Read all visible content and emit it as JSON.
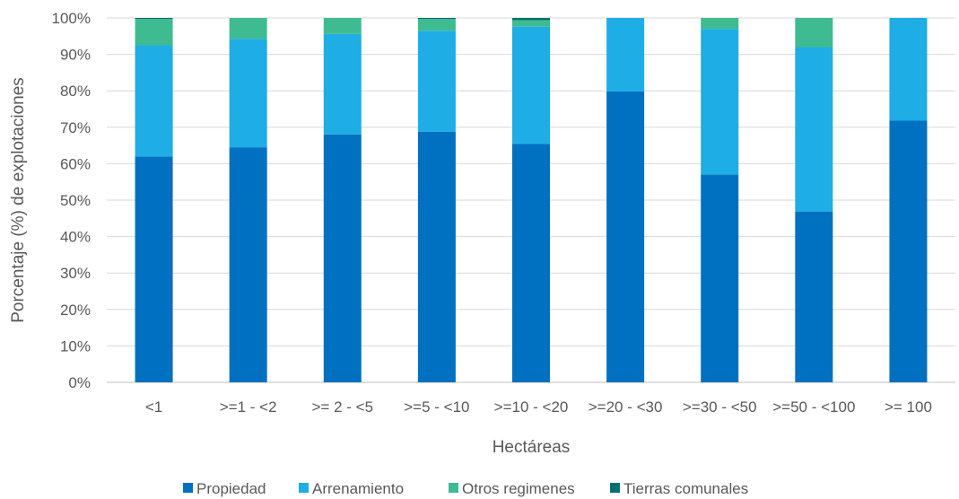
{
  "chart_data": {
    "type": "bar",
    "stacked": true,
    "percent_stacked": true,
    "categories": [
      "<1",
      ">=1 - <2",
      ">= 2 - <5",
      ">=5 - <10",
      ">=10 - <20",
      ">=20 - <30",
      ">=30 - <50",
      ">=50 - <100",
      ">= 100"
    ],
    "series": [
      {
        "name": "Propiedad",
        "color": "#0070C0",
        "values": [
          62,
          64.5,
          68,
          68.8,
          65.4,
          79.8,
          57,
          46.8,
          71.8
        ]
      },
      {
        "name": "Arrenamiento",
        "color": "#1EADE5",
        "values": [
          30.5,
          29.8,
          27.6,
          27.7,
          32.2,
          20.2,
          40,
          45.2,
          28.2
        ]
      },
      {
        "name": "Otros regimenes",
        "color": "#3FBB92",
        "values": [
          7.2,
          5.7,
          4.4,
          3.2,
          1.8,
          0,
          3,
          8,
          0
        ]
      },
      {
        "name": "Tierras comunales",
        "color": "#007070",
        "values": [
          0.3,
          0,
          0,
          0.3,
          0.6,
          0,
          0,
          0,
          0
        ]
      }
    ],
    "title": "",
    "xlabel": "Hectáreas",
    "ylabel": "Porcentaje (%) de explotaciones",
    "ylim": [
      0,
      100
    ],
    "yticks": [
      "0%",
      "10%",
      "20%",
      "30%",
      "40%",
      "50%",
      "60%",
      "70%",
      "80%",
      "90%",
      "100%"
    ],
    "grid": true,
    "legend_position": "bottom"
  }
}
